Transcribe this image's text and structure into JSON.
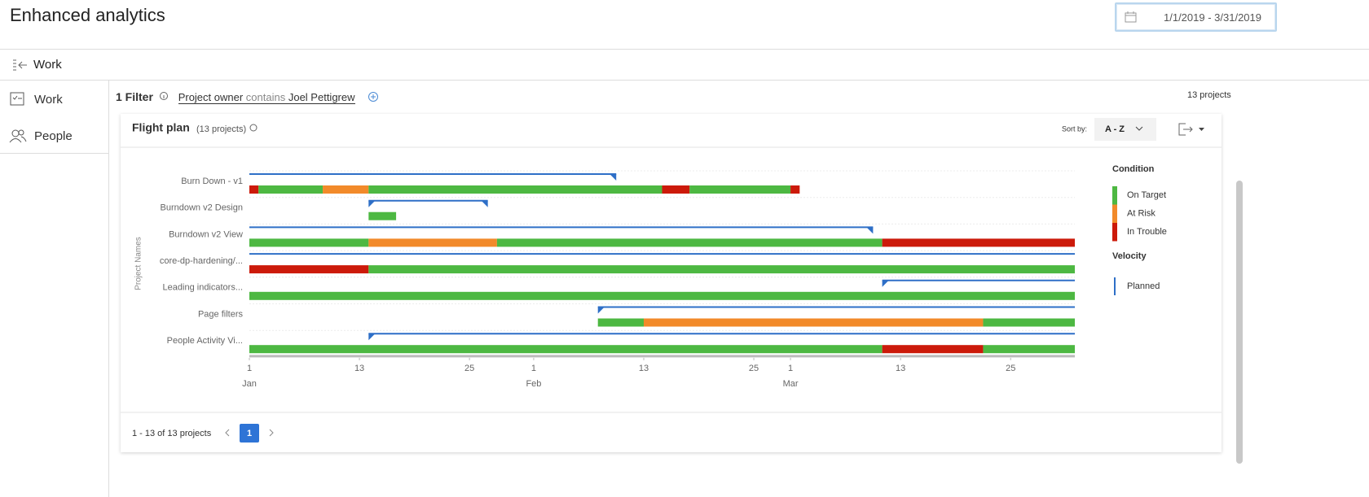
{
  "header": {
    "title": "Enhanced analytics",
    "date_range": "1/1/2019 - 3/31/2019"
  },
  "nav": {
    "back_label": "Work"
  },
  "sidebar": {
    "items": [
      "Work",
      "People"
    ]
  },
  "filter": {
    "count_label": "1 Filter",
    "field": "Project owner",
    "operator": "contains",
    "value": "Joel Pettigrew",
    "total": "13 projects"
  },
  "panel": {
    "title": "Flight plan",
    "subtitle": "(13 projects)",
    "sort_label": "Sort by:",
    "sort_value": "A - Z"
  },
  "chart_data": {
    "type": "gantt",
    "y_label": "Project Names",
    "xlim": [
      0,
      90
    ],
    "xticks": [
      {
        "value": 0,
        "label": "1"
      },
      {
        "value": 12,
        "label": "13"
      },
      {
        "value": 24,
        "label": "25"
      },
      {
        "value": 31,
        "label": "1"
      },
      {
        "value": 43,
        "label": "13"
      },
      {
        "value": 55,
        "label": "25"
      },
      {
        "value": 59,
        "label": "1"
      },
      {
        "value": 71,
        "label": "13"
      },
      {
        "value": 83,
        "label": "25"
      }
    ],
    "months": [
      {
        "value": 0,
        "label": "Jan"
      },
      {
        "value": 31,
        "label": "Feb"
      },
      {
        "value": 59,
        "label": "Mar"
      }
    ],
    "condition_title": "Condition",
    "conditions": [
      {
        "name": "On Target",
        "color": "#4db842"
      },
      {
        "name": "At Risk",
        "color": "#f28a2a"
      },
      {
        "name": "In Trouble",
        "color": "#cc1a0a"
      }
    ],
    "velocity_title": "Velocity",
    "velocity": [
      {
        "name": "Planned",
        "color": "#2e6fc7"
      }
    ],
    "rows": [
      {
        "name": "Burn Down - v1",
        "planned": [
          0,
          40
        ],
        "segments": [
          {
            "condition": 2,
            "start": 0,
            "end": 1
          },
          {
            "condition": 0,
            "start": 1,
            "end": 8
          },
          {
            "condition": 1,
            "start": 8,
            "end": 13
          },
          {
            "condition": 0,
            "start": 13,
            "end": 45
          },
          {
            "condition": 2,
            "start": 45,
            "end": 48
          },
          {
            "condition": 0,
            "start": 48,
            "end": 59
          },
          {
            "condition": 2,
            "start": 59,
            "end": 60
          }
        ]
      },
      {
        "name": "Burndown v2 Design",
        "planned": [
          13,
          26
        ],
        "segments": [
          {
            "condition": 0,
            "start": 13,
            "end": 16
          }
        ]
      },
      {
        "name": "Burndown v2 View",
        "planned": [
          0,
          68
        ],
        "segments": [
          {
            "condition": 0,
            "start": 0,
            "end": 13
          },
          {
            "condition": 1,
            "start": 13,
            "end": 27
          },
          {
            "condition": 0,
            "start": 27,
            "end": 69
          },
          {
            "condition": 2,
            "start": 69,
            "end": 90
          }
        ]
      },
      {
        "name": "core-dp-hardening/...",
        "planned": [
          0,
          90
        ],
        "segments": [
          {
            "condition": 2,
            "start": 0,
            "end": 13
          },
          {
            "condition": 0,
            "start": 13,
            "end": 90
          }
        ]
      },
      {
        "name": "Leading indicators...",
        "planned": [
          69,
          90
        ],
        "segments": [
          {
            "condition": 0,
            "start": 0,
            "end": 90
          }
        ]
      },
      {
        "name": "Page filters",
        "planned": [
          38,
          90
        ],
        "segments": [
          {
            "condition": 0,
            "start": 38,
            "end": 43
          },
          {
            "condition": 1,
            "start": 43,
            "end": 80
          },
          {
            "condition": 0,
            "start": 80,
            "end": 90
          }
        ]
      },
      {
        "name": "People Activity Vi...",
        "planned": [
          13,
          90
        ],
        "segments": [
          {
            "condition": 0,
            "start": 0,
            "end": 69
          },
          {
            "condition": 2,
            "start": 69,
            "end": 80
          },
          {
            "condition": 0,
            "start": 80,
            "end": 90
          }
        ]
      }
    ]
  },
  "pagination": {
    "summary": "1 - 13 of 13 projects",
    "current": 1
  }
}
